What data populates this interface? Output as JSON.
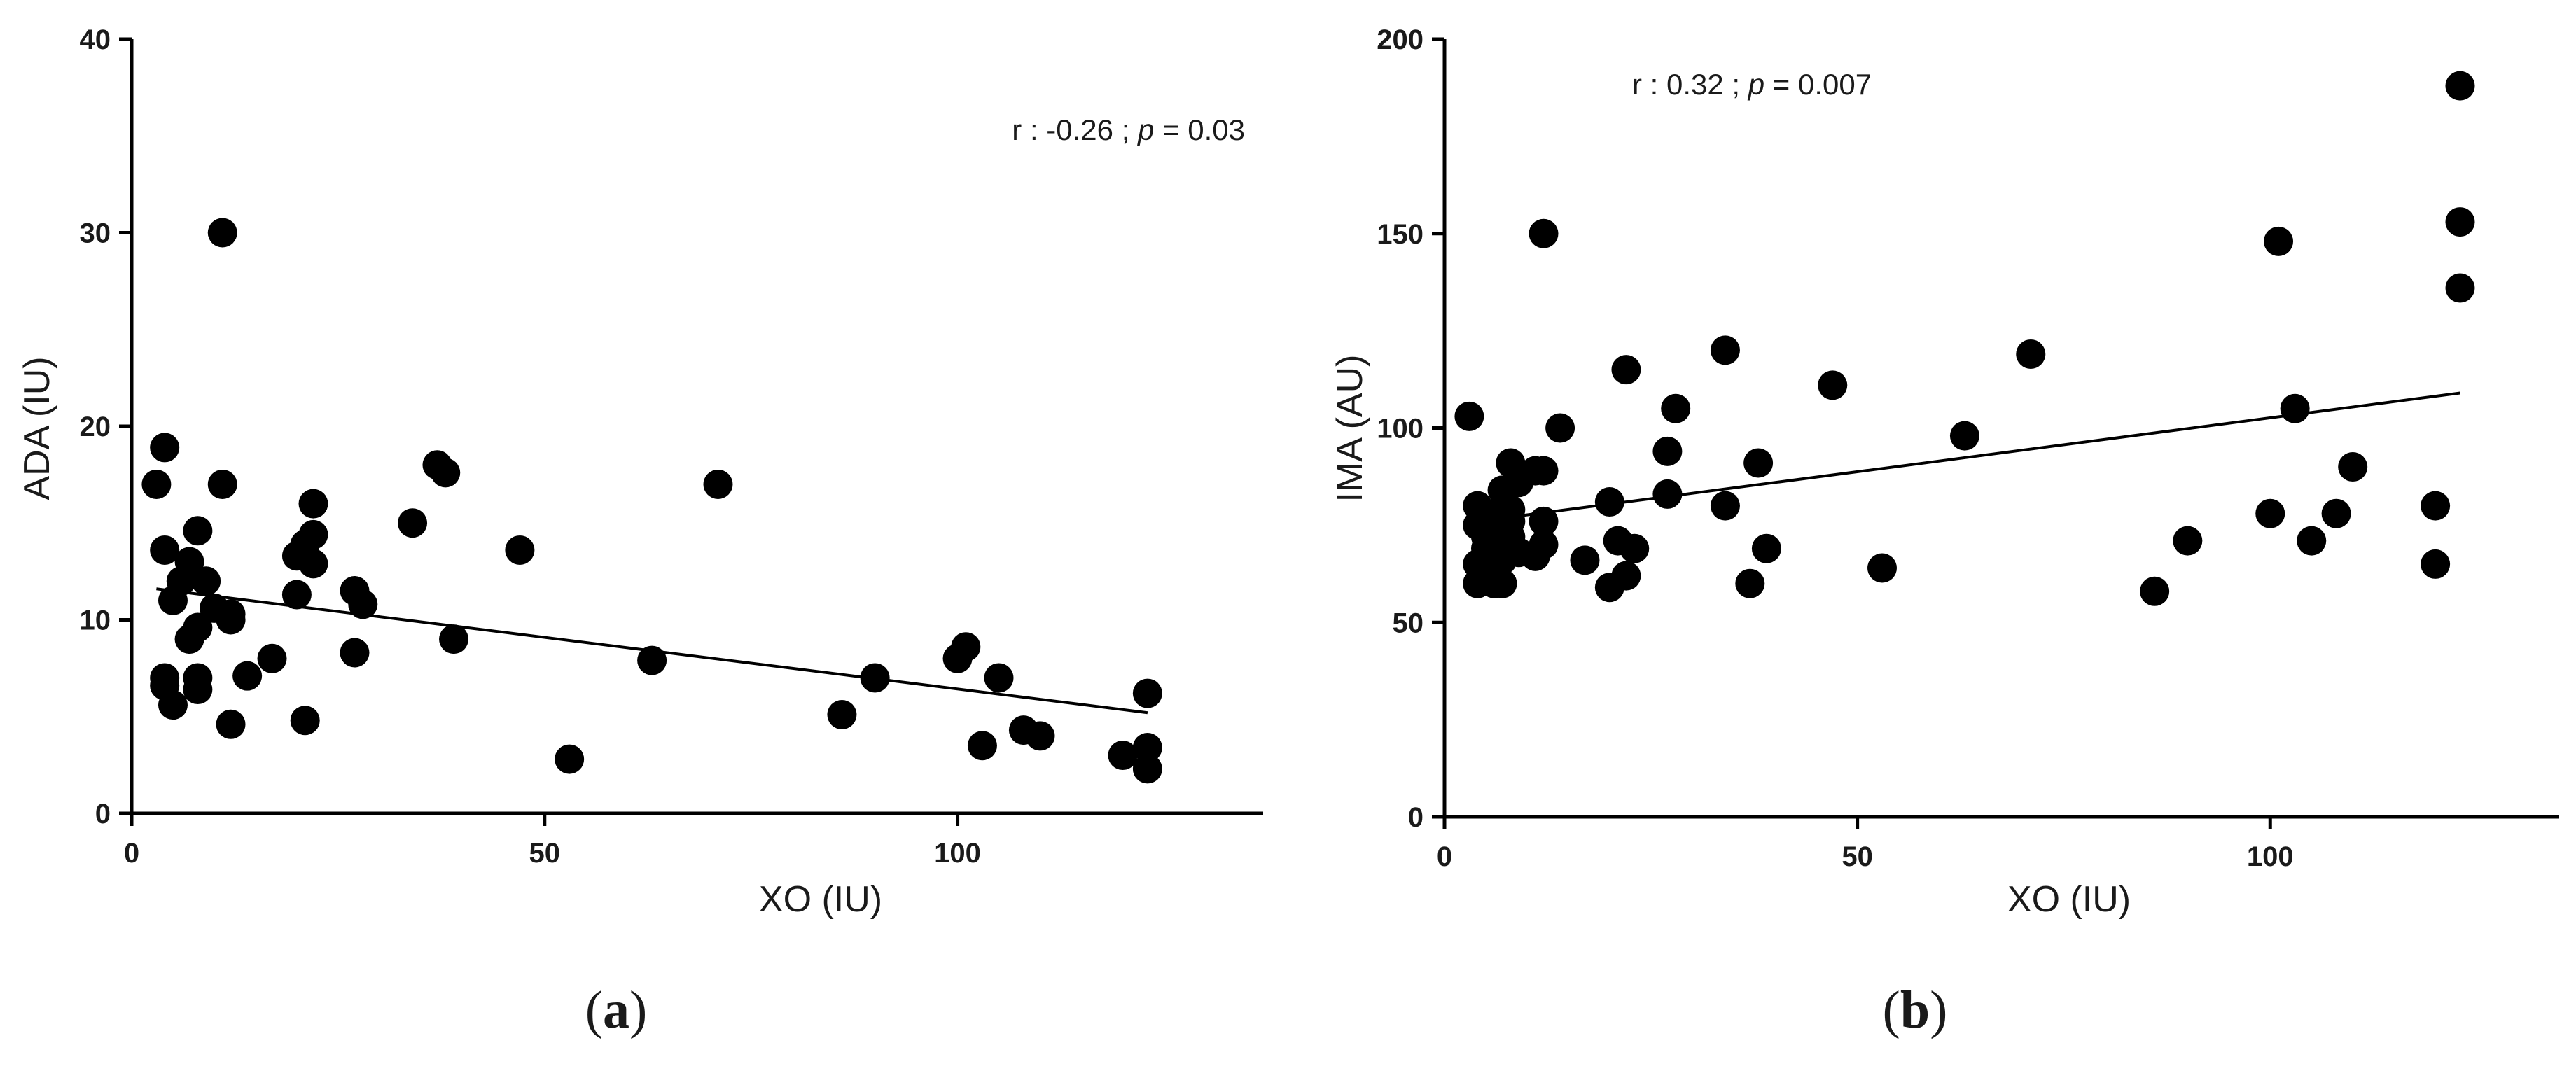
{
  "colors": {
    "marker": "#000000",
    "axis": "#000000",
    "text": "#1a1a1a"
  },
  "chart_data": [
    {
      "type": "scatter",
      "panel_label": "a",
      "xlabel": "XO (IU)",
      "ylabel": "ADA (IU)",
      "xlim": [
        0,
        137
      ],
      "ylim": [
        0,
        40
      ],
      "xticks": [
        0,
        50,
        100
      ],
      "yticks": [
        0,
        10,
        20,
        30,
        40
      ],
      "grid": false,
      "annotation": {
        "prefix": "r : -0.26 ; ",
        "p_symbol": "p",
        "suffix": " = 0.03"
      },
      "trendline": {
        "x": [
          3,
          123
        ],
        "y": [
          11.6,
          5.2
        ]
      },
      "points": [
        [
          3,
          17
        ],
        [
          4,
          18.9
        ],
        [
          4,
          13.6
        ],
        [
          4,
          7
        ],
        [
          4,
          6.6
        ],
        [
          5,
          11
        ],
        [
          5,
          5.6
        ],
        [
          6,
          12
        ],
        [
          7,
          13
        ],
        [
          7,
          9
        ],
        [
          8,
          14.6
        ],
        [
          8,
          9.6
        ],
        [
          8,
          7
        ],
        [
          8,
          6.4
        ],
        [
          9,
          12
        ],
        [
          10,
          10.6
        ],
        [
          11,
          30
        ],
        [
          11,
          17
        ],
        [
          12,
          10.3
        ],
        [
          12,
          10
        ],
        [
          12,
          4.6
        ],
        [
          14,
          7.1
        ],
        [
          17,
          8
        ],
        [
          20,
          13.3
        ],
        [
          20,
          11.3
        ],
        [
          21,
          13.9
        ],
        [
          21,
          4.8
        ],
        [
          22,
          16
        ],
        [
          22,
          14.4
        ],
        [
          22,
          12.9
        ],
        [
          27,
          11.5
        ],
        [
          27,
          8.3
        ],
        [
          28,
          10.8
        ],
        [
          34,
          15
        ],
        [
          37,
          18
        ],
        [
          38,
          17.6
        ],
        [
          39,
          9
        ],
        [
          47,
          13.6
        ],
        [
          53,
          2.8
        ],
        [
          63,
          7.9
        ],
        [
          71,
          17
        ],
        [
          86,
          5.1
        ],
        [
          90,
          7
        ],
        [
          100,
          8
        ],
        [
          101,
          8.6
        ],
        [
          103,
          3.5
        ],
        [
          105,
          7
        ],
        [
          108,
          4.3
        ],
        [
          110,
          4
        ],
        [
          120,
          3
        ],
        [
          123,
          6.2
        ],
        [
          123,
          3.4
        ],
        [
          123,
          2.3
        ]
      ]
    },
    {
      "type": "scatter",
      "panel_label": "b",
      "xlabel": "XO (IU)",
      "ylabel": "IMA (AU)",
      "xlim": [
        0,
        135
      ],
      "ylim": [
        0,
        200
      ],
      "xticks": [
        0,
        50,
        100
      ],
      "yticks": [
        0,
        50,
        100,
        150,
        200
      ],
      "grid": false,
      "annotation": {
        "prefix": "r : 0.32 ; ",
        "p_symbol": "p",
        "suffix": " = 0.007"
      },
      "trendline": {
        "x": [
          4,
          123
        ],
        "y": [
          76,
          109
        ]
      },
      "points": [
        [
          3,
          103
        ],
        [
          4,
          80
        ],
        [
          4,
          75
        ],
        [
          4,
          65
        ],
        [
          4,
          60
        ],
        [
          5,
          72
        ],
        [
          5,
          69
        ],
        [
          6,
          78
        ],
        [
          6,
          76
        ],
        [
          6,
          64
        ],
        [
          6,
          60
        ],
        [
          7,
          84
        ],
        [
          7,
          70
        ],
        [
          7,
          66
        ],
        [
          7,
          60
        ],
        [
          8,
          91
        ],
        [
          8,
          79
        ],
        [
          8,
          76
        ],
        [
          8,
          72
        ],
        [
          9,
          86
        ],
        [
          9,
          68
        ],
        [
          11,
          89
        ],
        [
          11,
          67
        ],
        [
          12,
          150
        ],
        [
          12,
          89
        ],
        [
          12,
          76
        ],
        [
          12,
          70
        ],
        [
          14,
          100
        ],
        [
          17,
          66
        ],
        [
          20,
          81
        ],
        [
          20,
          59
        ],
        [
          21,
          71
        ],
        [
          22,
          115
        ],
        [
          22,
          62
        ],
        [
          23,
          69
        ],
        [
          27,
          94
        ],
        [
          27,
          83
        ],
        [
          28,
          105
        ],
        [
          34,
          120
        ],
        [
          34,
          80
        ],
        [
          37,
          60
        ],
        [
          38,
          91
        ],
        [
          39,
          69
        ],
        [
          47,
          111
        ],
        [
          53,
          64
        ],
        [
          63,
          98
        ],
        [
          71,
          119
        ],
        [
          86,
          58
        ],
        [
          90,
          71
        ],
        [
          100,
          78
        ],
        [
          101,
          148
        ],
        [
          103,
          105
        ],
        [
          105,
          71
        ],
        [
          108,
          78
        ],
        [
          110,
          90
        ],
        [
          120,
          80
        ],
        [
          120,
          65
        ],
        [
          123,
          188
        ],
        [
          123,
          153
        ],
        [
          123,
          136
        ]
      ]
    }
  ]
}
